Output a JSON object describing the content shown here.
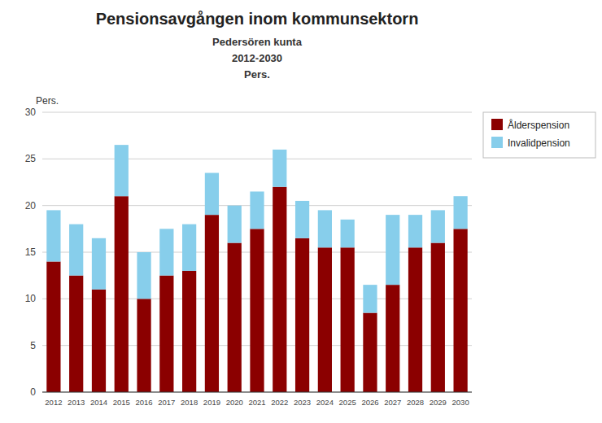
{
  "chart_data": {
    "type": "bar",
    "stacked": true,
    "title": "Pensionsavgången inom kommunsektorn",
    "subtitle": [
      "Pedersören kunta",
      "2012-2030",
      "Pers."
    ],
    "ylabel": "Pers.",
    "categories": [
      "2012",
      "2013",
      "2014",
      "2015",
      "2016",
      "2017",
      "2018",
      "2019",
      "2020",
      "2021",
      "2022",
      "2023",
      "2024",
      "2025",
      "2026",
      "2027",
      "2028",
      "2029",
      "2030"
    ],
    "series": [
      {
        "name": "Ålderspension",
        "color": "#8B0000",
        "values": [
          14,
          12.5,
          11,
          21,
          10,
          12.5,
          13,
          19,
          16,
          17.5,
          22,
          16.5,
          15.5,
          15.5,
          8.5,
          11.5,
          15.5,
          16,
          17.5
        ]
      },
      {
        "name": "Invalidpension",
        "color": "#87CEEB",
        "values": [
          5.5,
          5.5,
          5.5,
          5.5,
          5,
          5,
          5,
          4.5,
          4,
          4,
          4,
          4,
          4,
          3,
          3,
          7.5,
          3.5,
          3.5,
          3.5
        ]
      }
    ],
    "ylim": [
      0,
      30
    ],
    "yticks": [
      0,
      5,
      10,
      15,
      20,
      25,
      30
    ],
    "grid": true,
    "legend": "upper right"
  }
}
